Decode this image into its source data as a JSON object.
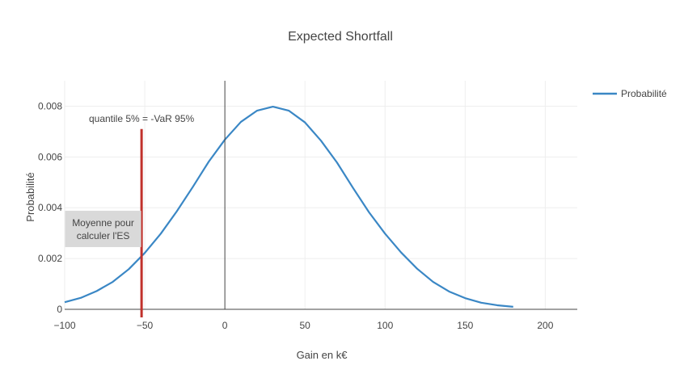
{
  "chart_data": {
    "type": "line",
    "title": "Expected Shortfall",
    "xlabel": "Gain en k€",
    "ylabel": "Probabilité",
    "xlim": [
      -100,
      220
    ],
    "ylim": [
      0,
      0.009
    ],
    "x_ticks": [
      -100,
      -50,
      0,
      50,
      100,
      150,
      200
    ],
    "x_tick_labels": [
      "−100",
      "−50",
      "0",
      "50",
      "100",
      "150",
      "200"
    ],
    "y_ticks": [
      0,
      0.002,
      0.004,
      0.006,
      0.008
    ],
    "y_tick_labels": [
      "0",
      "0.002",
      "0.004",
      "0.006",
      "0.008"
    ],
    "grid": true,
    "legend_position": "top-right",
    "series": [
      {
        "name": "Probabilité",
        "color": "#3a87c5",
        "x": [
          -100,
          -90,
          -80,
          -70,
          -60,
          -50,
          -40,
          -30,
          -20,
          -10,
          0,
          10,
          20,
          30,
          40,
          50,
          60,
          70,
          80,
          90,
          100,
          110,
          120,
          130,
          140,
          150,
          160,
          170,
          180
        ],
        "y": [
          0.00028,
          0.00045,
          0.00072,
          0.00108,
          0.00158,
          0.00222,
          0.00298,
          0.00386,
          0.00482,
          0.00582,
          0.00668,
          0.00738,
          0.00782,
          0.00798,
          0.00782,
          0.00736,
          0.00664,
          0.00578,
          0.00478,
          0.00382,
          0.00298,
          0.00224,
          0.0016,
          0.00108,
          0.0007,
          0.00044,
          0.00026,
          0.00016,
          0.0001
        ]
      }
    ],
    "vertical_lines": [
      {
        "x": -52,
        "y_top": 0.0071,
        "color": "#c0312b"
      },
      {
        "x": 0,
        "color": "#444444"
      }
    ],
    "annotations": [
      {
        "text": "quantile 5% = -VaR 95%",
        "x": -52,
        "y": 0.0075
      },
      {
        "text_lines": [
          "Moyenne pour",
          "calculer l'ES"
        ],
        "x": -76,
        "y": 0.00315,
        "background": "#d9d9d9"
      }
    ]
  }
}
